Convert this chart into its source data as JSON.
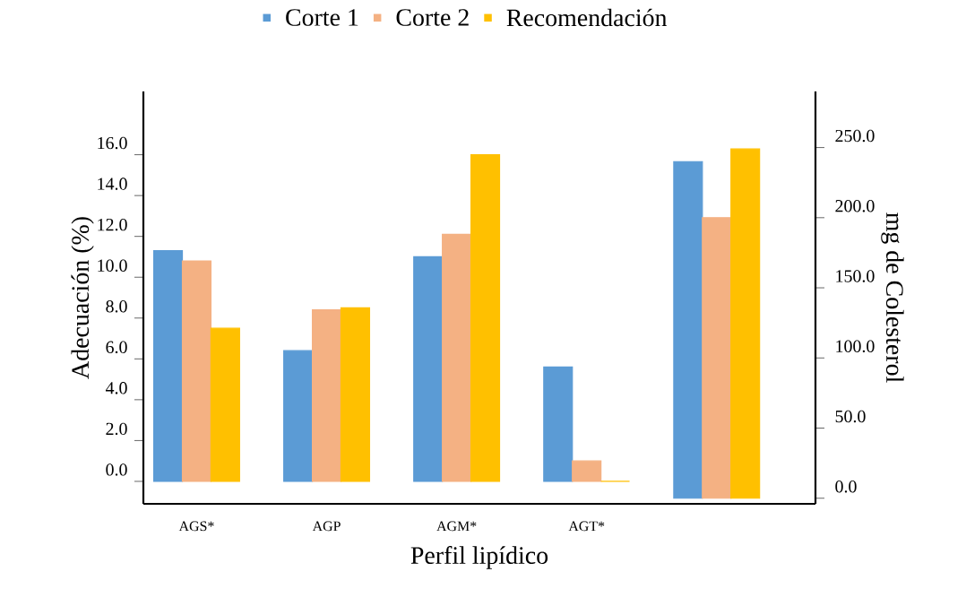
{
  "chart_data": {
    "type": "bar",
    "categories": [
      "AGS*",
      "AGP",
      "AGM*",
      "AGT*",
      null
    ],
    "series": [
      {
        "name": "Corte 1",
        "color": "#5b9bd5",
        "values": [
          11.3,
          6.4,
          11.0,
          5.6,
          null
        ]
      },
      {
        "name": "Corte 2",
        "color": "#f4b183",
        "values": [
          10.8,
          8.4,
          12.1,
          1.0,
          null
        ]
      },
      {
        "name": "Recomendación",
        "color": "#ffc000",
        "values": [
          7.5,
          8.5,
          16.0,
          0.0,
          null
        ]
      },
      {
        "color": "#5b9bd5",
        "axis": "y2",
        "values": [
          null,
          null,
          null,
          null,
          240
        ]
      },
      {
        "color": "#f4b183",
        "axis": "y2",
        "values": [
          null,
          null,
          null,
          null,
          200
        ]
      },
      {
        "color": "#ffc000",
        "axis": "y2",
        "values": [
          null,
          null,
          null,
          null,
          249
        ]
      }
    ],
    "xlabel": "Perfil lipídico",
    "ylabel": "Adecuación (%)",
    "y2label": "mg de Colesterol",
    "ylim": [
      -1.1,
      19.1
    ],
    "yticks": [
      {
        "value": 0,
        "label": "0.0"
      },
      {
        "value": 2,
        "label": "2.0"
      },
      {
        "value": 4,
        "label": "4.0"
      },
      {
        "value": 6,
        "label": "6.0"
      },
      {
        "value": 8,
        "label": "8.0"
      },
      {
        "value": 10,
        "label": "10.0"
      },
      {
        "value": 12,
        "label": "12.0"
      },
      {
        "value": 14,
        "label": "14.0"
      },
      {
        "value": 16,
        "label": "16.0"
      }
    ],
    "y2lim": [
      -4,
      290
    ],
    "y2ticks": [
      {
        "value": 0,
        "label": "0.0"
      },
      {
        "value": 50,
        "label": "50.0"
      },
      {
        "value": 100,
        "label": "100.0"
      },
      {
        "value": 150,
        "label": "150.0"
      },
      {
        "value": 200,
        "label": "200.0"
      },
      {
        "value": 250,
        "label": "250.0"
      }
    ],
    "legend": "top"
  }
}
